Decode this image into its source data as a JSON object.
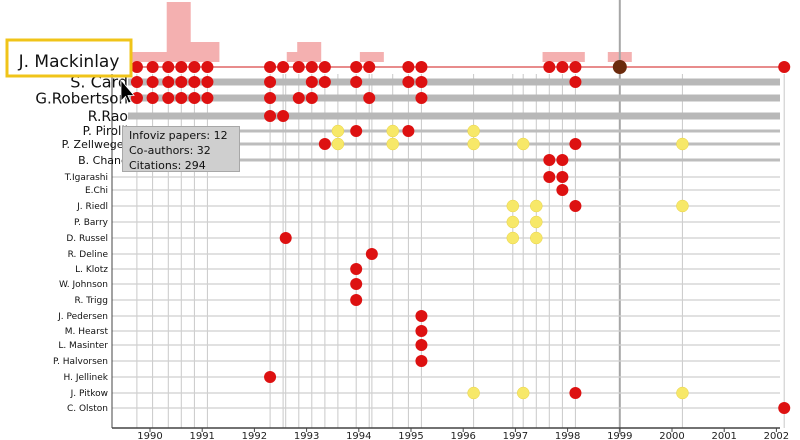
{
  "focus_author": "J. Mackinlay",
  "coauthors": [
    "S. Card",
    "G.Robertson",
    "R.Rao",
    "P. Pirolli",
    "P. Zellweger",
    "B. Chang",
    "T.Igarashi",
    "E.Chi",
    "J. Riedl",
    "P. Barry",
    "D. Russel",
    "R. Deline",
    "L. Klotz",
    "W. Johnson",
    "R. Trigg",
    "J. Pedersen",
    "M. Hearst",
    "L. Masinter",
    "P. Halvorsen",
    "H. Jellinek",
    "J. Pitkow",
    "C. Olston"
  ],
  "years": [
    "1990",
    "1991",
    "1992",
    "1993",
    "1994",
    "1995",
    "1996",
    "1997",
    "1998",
    "1999",
    "2000",
    "2001",
    "2002"
  ],
  "tooltip": {
    "papers": "Infoviz papers: 12",
    "coauthors": "Co-authors: 32",
    "citations": "Citations: 294"
  },
  "colors": {
    "red_dot": "#dd1111",
    "yellow_dot": "#f7e868",
    "selected_dot": "#6b2a0c",
    "citation_bar": "#f4b0b0",
    "focus_line": "#e06666",
    "highlight_box": "#f0c419"
  },
  "icons": {
    "cursor": "mouse-pointer-icon"
  },
  "citation_counts": [
    {
      "year": 1989.85,
      "count": 1
    },
    {
      "year": 1990.0,
      "count": 1
    },
    {
      "year": 1990.3,
      "count": 1
    },
    {
      "year": 1990.55,
      "count": 6
    },
    {
      "year": 1990.85,
      "count": 2
    },
    {
      "year": 1991.1,
      "count": 2
    },
    {
      "year": 1992.85,
      "count": 1
    },
    {
      "year": 1993.05,
      "count": 2
    },
    {
      "year": 1994.25,
      "count": 1
    },
    {
      "year": 1997.75,
      "count": 1
    },
    {
      "year": 1998.1,
      "count": 1
    },
    {
      "year": 1999.0,
      "count": 1
    }
  ],
  "papers": [
    {
      "year": 1989.75,
      "color": "red",
      "authors": [
        0,
        1,
        2
      ]
    },
    {
      "year": 1990.05,
      "color": "red",
      "authors": [
        0,
        1,
        2
      ]
    },
    {
      "year": 1990.35,
      "color": "red",
      "authors": [
        0,
        1,
        2
      ]
    },
    {
      "year": 1990.6,
      "color": "red",
      "authors": [
        0,
        1,
        2
      ]
    },
    {
      "year": 1990.85,
      "color": "red",
      "authors": [
        0,
        1,
        2
      ]
    },
    {
      "year": 1991.1,
      "color": "red",
      "authors": [
        0,
        1,
        2
      ]
    },
    {
      "year": 1992.3,
      "color": "red",
      "authors": [
        0,
        1,
        2,
        3
      ]
    },
    {
      "year": 1992.55,
      "color": "red",
      "authors": [
        0,
        3
      ]
    },
    {
      "year": 1992.6,
      "color": "red",
      "authors": [
        11
      ]
    },
    {
      "year": 1992.3,
      "color": "red",
      "authors": [
        20
      ]
    },
    {
      "year": 1992.85,
      "color": "red",
      "authors": [
        0,
        2
      ]
    },
    {
      "year": 1993.1,
      "color": "red",
      "authors": [
        0,
        1,
        2
      ]
    },
    {
      "year": 1993.35,
      "color": "red",
      "authors": [
        0,
        1
      ]
    },
    {
      "year": 1993.35,
      "color": "red",
      "authors": [
        5
      ]
    },
    {
      "year": 1993.6,
      "color": "yellow",
      "authors": [
        4,
        5
      ]
    },
    {
      "year": 1993.95,
      "color": "red",
      "authors": [
        0,
        1,
        4
      ]
    },
    {
      "year": 1993.95,
      "color": "red",
      "authors": [
        13,
        14,
        15
      ]
    },
    {
      "year": 1994.2,
      "color": "red",
      "authors": [
        0,
        2
      ]
    },
    {
      "year": 1994.25,
      "color": "red",
      "authors": [
        12
      ]
    },
    {
      "year": 1994.65,
      "color": "yellow",
      "authors": [
        4,
        5
      ]
    },
    {
      "year": 1994.95,
      "color": "red",
      "authors": [
        0,
        1,
        4
      ]
    },
    {
      "year": 1995.2,
      "color": "red",
      "authors": [
        0,
        1,
        2
      ]
    },
    {
      "year": 1995.2,
      "color": "red",
      "authors": [
        16,
        17,
        18,
        19
      ]
    },
    {
      "year": 1996.2,
      "color": "yellow",
      "authors": [
        4,
        5
      ]
    },
    {
      "year": 1996.2,
      "color": "yellow",
      "authors": [
        21
      ]
    },
    {
      "year": 1996.95,
      "color": "yellow",
      "authors": [
        9,
        10,
        11
      ]
    },
    {
      "year": 1997.15,
      "color": "yellow",
      "authors": [
        5
      ]
    },
    {
      "year": 1997.15,
      "color": "yellow",
      "authors": [
        21
      ]
    },
    {
      "year": 1997.4,
      "color": "yellow",
      "authors": [
        9,
        10,
        11
      ]
    },
    {
      "year": 1997.65,
      "color": "red",
      "authors": [
        0,
        6,
        7
      ]
    },
    {
      "year": 1997.9,
      "color": "red",
      "authors": [
        0,
        6,
        7,
        8
      ]
    },
    {
      "year": 1998.15,
      "color": "red",
      "authors": [
        0,
        1,
        5,
        9,
        21
      ]
    },
    {
      "year": 1999.0,
      "color": "selected",
      "authors": [
        0
      ]
    },
    {
      "year": 2000.2,
      "color": "yellow",
      "authors": [
        5,
        9
      ]
    },
    {
      "year": 2000.2,
      "color": "yellow",
      "authors": [
        21
      ]
    },
    {
      "year": 2002.15,
      "color": "red",
      "authors": [
        0,
        22
      ]
    }
  ]
}
